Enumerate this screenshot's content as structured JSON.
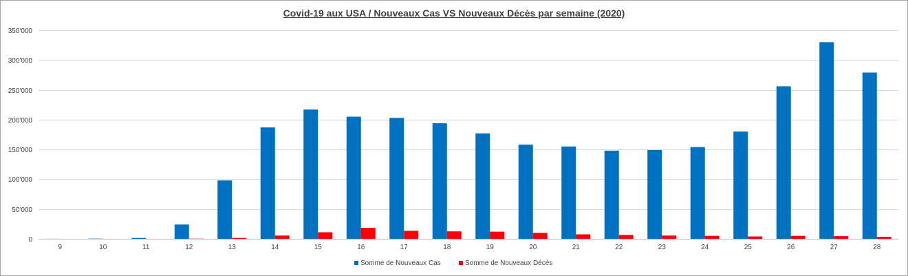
{
  "chart_data": {
    "type": "bar",
    "title": "Covid-19 aux USA / Nouveaux Cas VS Nouveaux Décès par semaine (2020)",
    "xlabel": "",
    "ylabel": "",
    "categories": [
      "9",
      "10",
      "11",
      "12",
      "13",
      "14",
      "15",
      "16",
      "17",
      "18",
      "19",
      "20",
      "21",
      "22",
      "23",
      "24",
      "25",
      "26",
      "27",
      "28"
    ],
    "series": [
      {
        "name": "Somme de Nouveaux Cas",
        "color": "#0070c0",
        "values": [
          100,
          400,
          1500,
          24000,
          98000,
          187000,
          217000,
          205000,
          203000,
          194000,
          177000,
          158000,
          155000,
          148000,
          149000,
          154000,
          180000,
          256000,
          330000,
          279000
        ]
      },
      {
        "name": "Somme de Nouveaux Décès",
        "color": "#ff0000",
        "values": [
          0,
          20,
          40,
          300,
          1500,
          5500,
          11000,
          18500,
          13500,
          12500,
          12000,
          10000,
          7500,
          6500,
          5500,
          5000,
          4000,
          5000,
          4500,
          3500
        ]
      }
    ],
    "ylim": [
      0,
      350000
    ],
    "yticks": [
      0,
      50000,
      100000,
      150000,
      200000,
      250000,
      300000,
      350000
    ],
    "ytick_labels": [
      "0",
      "50'000",
      "100'000",
      "150'000",
      "200'000",
      "250'000",
      "300'000",
      "350'000"
    ],
    "grid": true,
    "legend_position": "bottom"
  }
}
